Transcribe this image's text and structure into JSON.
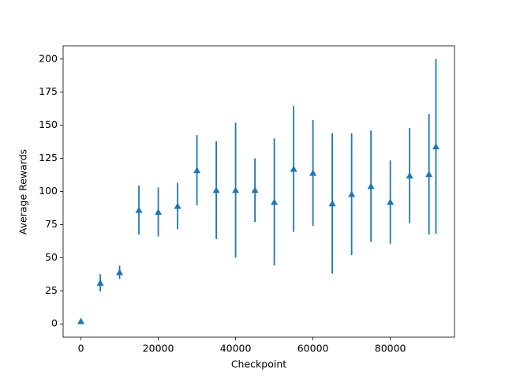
{
  "chart_data": {
    "type": "errorbar",
    "xlabel": "Checkpoint",
    "ylabel": "Average Rewards",
    "xlim": [
      -4600,
      96600
    ],
    "ylim": [
      -10,
      210
    ],
    "xticks": [
      0,
      20000,
      40000,
      60000,
      80000
    ],
    "yticks": [
      0,
      25,
      50,
      75,
      100,
      125,
      150,
      175,
      200
    ],
    "color": "#1f77b4",
    "marker": "triangle",
    "x": [
      0,
      5000,
      10000,
      15000,
      20000,
      25000,
      30000,
      35000,
      40000,
      45000,
      50000,
      55000,
      60000,
      65000,
      70000,
      75000,
      80000,
      85000,
      90000,
      91800
    ],
    "values": [
      2,
      31,
      39,
      86,
      84.5,
      89,
      116,
      101,
      101,
      101,
      92,
      117,
      114,
      91,
      98,
      104,
      92,
      112,
      113,
      134
    ],
    "errors": [
      0,
      6.5,
      5,
      18.5,
      18.5,
      17.5,
      26.5,
      37,
      51,
      24,
      48,
      47.5,
      40,
      53,
      46,
      42,
      31.5,
      36,
      45.5,
      66
    ]
  }
}
